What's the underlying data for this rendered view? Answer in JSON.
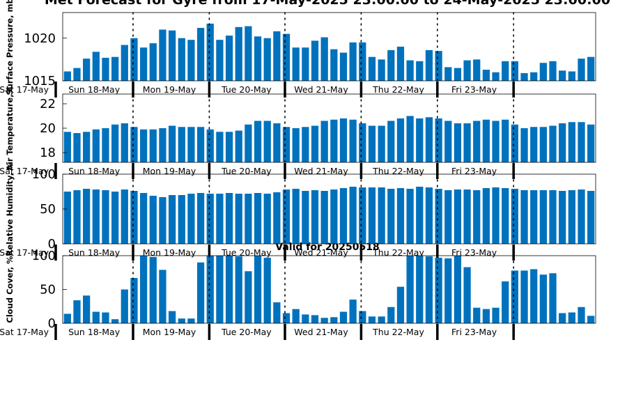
{
  "chart_data": {
    "type": "bar",
    "title": "Met Forecast for Gyre from 17-May-2025 23:00:00 to 24-May-2025 23:00:00",
    "subtitle": "Valid for 20250518",
    "colors": {
      "bar": "#0072bd",
      "frame": "#000000"
    },
    "day_labels": [
      "Sat 17-May",
      "Sun 18-May",
      "Mon 19-May",
      "Tue 20-May",
      "Wed 21-May",
      "Thu 22-May",
      "Fri 23-May"
    ],
    "panels": [
      {
        "ylabel": "Surface Pressure, mb",
        "ylim": [
          1015,
          1023
        ],
        "yticks": [
          1015,
          1020
        ],
        "values": [
          1016.1,
          1016.5,
          1017.6,
          1018.4,
          1017.7,
          1017.8,
          1019.2,
          1020.0,
          1018.9,
          1019.4,
          1021.0,
          1020.9,
          1020.0,
          1019.8,
          1021.2,
          1021.7,
          1019.8,
          1020.3,
          1021.3,
          1021.4,
          1020.2,
          1020.0,
          1020.8,
          1020.5,
          1018.9,
          1018.9,
          1019.7,
          1020.1,
          1018.7,
          1018.3,
          1019.5,
          1019.5,
          1017.8,
          1017.5,
          1018.6,
          1019.0,
          1017.4,
          1017.3,
          1018.6,
          1018.5,
          1016.6,
          1016.5,
          1017.4,
          1017.5,
          1016.3,
          1016.0,
          1017.3,
          1017.3,
          1015.9,
          1016.0,
          1017.1,
          1017.3,
          1016.2,
          1016.1,
          1017.6,
          1017.8
        ]
      },
      {
        "ylabel": "Air Temperature, C",
        "ylim": [
          17.2,
          22.8
        ],
        "yticks": [
          18,
          20,
          22
        ],
        "values": [
          19.7,
          19.6,
          19.7,
          19.9,
          20.0,
          20.3,
          20.4,
          20.1,
          19.9,
          19.9,
          20.0,
          20.2,
          20.1,
          20.1,
          20.1,
          19.9,
          19.7,
          19.7,
          19.8,
          20.3,
          20.6,
          20.6,
          20.4,
          20.1,
          20.0,
          20.1,
          20.2,
          20.6,
          20.7,
          20.8,
          20.7,
          20.4,
          20.2,
          20.2,
          20.6,
          20.8,
          21.0,
          20.8,
          20.9,
          20.8,
          20.6,
          20.4,
          20.4,
          20.6,
          20.7,
          20.6,
          20.7,
          20.3,
          20.0,
          20.1,
          20.1,
          20.2,
          20.4,
          20.5,
          20.5,
          20.3
        ]
      },
      {
        "ylabel": "Relative Humidity, %",
        "ylim": [
          0,
          100
        ],
        "yticks": [
          0,
          50,
          100
        ],
        "values": [
          75,
          77,
          79,
          78,
          77,
          75,
          78,
          76,
          73,
          69,
          67,
          70,
          70,
          72,
          73,
          72,
          72,
          73,
          72,
          72,
          73,
          72,
          74,
          78,
          79,
          76,
          77,
          76,
          78,
          80,
          82,
          81,
          81,
          81,
          79,
          80,
          79,
          82,
          81,
          79,
          77,
          78,
          78,
          77,
          80,
          81,
          80,
          79,
          77,
          77,
          77,
          77,
          76,
          77,
          78,
          76
        ]
      },
      {
        "ylabel": "Cloud Cover, %",
        "ylim": [
          0,
          100
        ],
        "yticks": [
          0,
          50,
          100
        ],
        "values": [
          14,
          34,
          41,
          17,
          16,
          6,
          50,
          67,
          100,
          98,
          79,
          18,
          7,
          7,
          90,
          100,
          100,
          100,
          99,
          77,
          100,
          97,
          31,
          15,
          21,
          13,
          12,
          8,
          9,
          17,
          35,
          18,
          10,
          10,
          24,
          54,
          100,
          100,
          99,
          97,
          96,
          100,
          83,
          23,
          21,
          23,
          62,
          78,
          78,
          80,
          72,
          74,
          15,
          16,
          24,
          11
        ]
      }
    ]
  }
}
